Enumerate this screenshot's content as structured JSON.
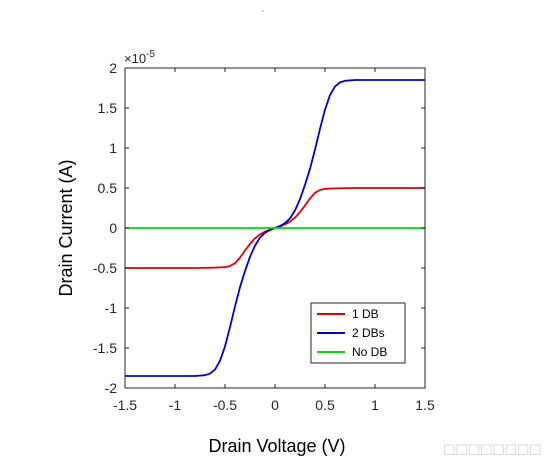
{
  "chart_data": {
    "type": "line",
    "xlabel": "Drain Voltage (V)",
    "ylabel": "Drain Current (A)",
    "y_exponent_label": "×10",
    "y_exponent_power": "-5",
    "xlim": [
      -1.5,
      1.5
    ],
    "ylim": [
      -2,
      2
    ],
    "y_scale_factor": 1e-05,
    "xticks": [
      "-1.5",
      "-1",
      "-0.5",
      "0",
      "0.5",
      "1",
      "1.5"
    ],
    "yticks": [
      "2",
      "1.5",
      "1",
      "0.5",
      "0",
      "-0.5",
      "-1",
      "-1.5",
      "-2"
    ],
    "grid": false,
    "legend_position": "bottom-right",
    "series": [
      {
        "name": "1 DB",
        "color": "#e00000",
        "x": [
          -1.5,
          -0.8,
          -0.6,
          -0.5,
          -0.45,
          -0.4,
          -0.35,
          -0.3,
          -0.25,
          -0.2,
          -0.15,
          -0.1,
          -0.05,
          0,
          0.05,
          0.1,
          0.15,
          0.2,
          0.25,
          0.3,
          0.35,
          0.4,
          0.45,
          0.5,
          0.6,
          0.8,
          1.5
        ],
        "y": [
          -0.5,
          -0.5,
          -0.495,
          -0.49,
          -0.475,
          -0.44,
          -0.37,
          -0.28,
          -0.2,
          -0.13,
          -0.08,
          -0.045,
          -0.02,
          0,
          0.02,
          0.045,
          0.08,
          0.13,
          0.2,
          0.28,
          0.37,
          0.44,
          0.475,
          0.49,
          0.495,
          0.5,
          0.5
        ]
      },
      {
        "name": "2 DBs",
        "color": "#0000c8",
        "x": [
          -1.5,
          -0.8,
          -0.7,
          -0.65,
          -0.6,
          -0.55,
          -0.5,
          -0.45,
          -0.4,
          -0.35,
          -0.3,
          -0.25,
          -0.2,
          -0.15,
          -0.1,
          -0.05,
          0,
          0.05,
          0.1,
          0.15,
          0.2,
          0.25,
          0.3,
          0.35,
          0.4,
          0.45,
          0.5,
          0.55,
          0.6,
          0.65,
          0.7,
          0.8,
          1.5
        ],
        "y": [
          -1.85,
          -1.85,
          -1.84,
          -1.82,
          -1.77,
          -1.66,
          -1.48,
          -1.24,
          -0.98,
          -0.74,
          -0.54,
          -0.36,
          -0.22,
          -0.12,
          -0.06,
          -0.025,
          0,
          0.025,
          0.06,
          0.12,
          0.22,
          0.36,
          0.54,
          0.74,
          0.98,
          1.24,
          1.48,
          1.66,
          1.77,
          1.82,
          1.84,
          1.85,
          1.85
        ]
      },
      {
        "name": "No DB",
        "color": "#00dd00",
        "x": [
          -1.5,
          1.5
        ],
        "y": [
          0,
          0
        ]
      }
    ]
  },
  "watermark_glyphs": "◻◻◻◻◻◻◻◻"
}
